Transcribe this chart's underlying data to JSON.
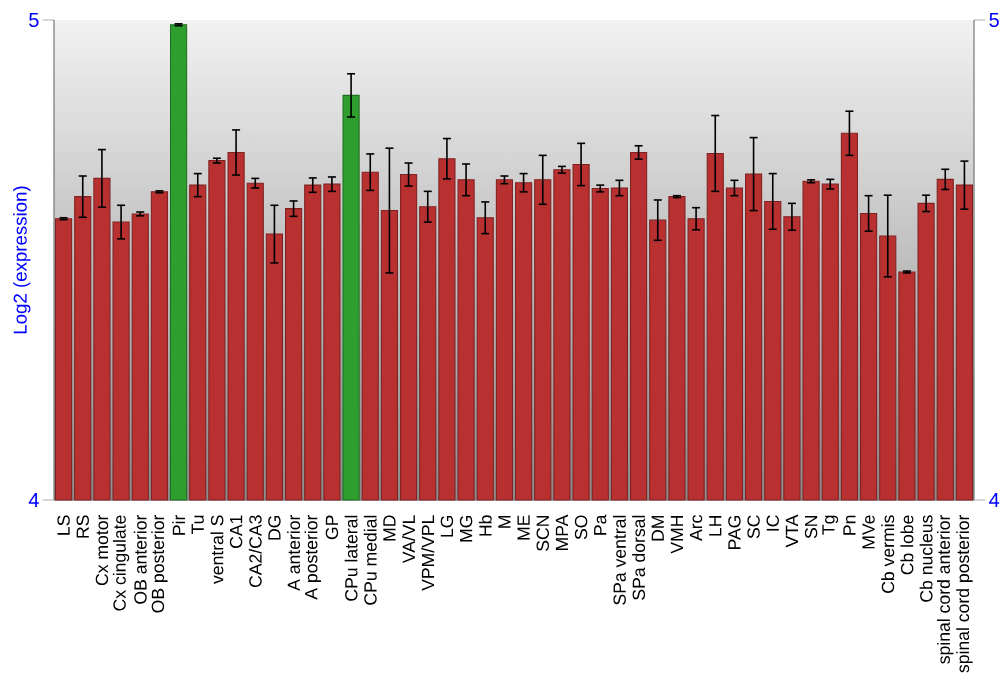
{
  "chart_data": {
    "type": "bar",
    "ylabel": "Log2 (expression)",
    "categories": [
      "LS",
      "RS",
      "Cx motor",
      "Cx cingulate",
      "OB anterior",
      "OB posterior",
      "Pir",
      "Tu",
      "ventral S",
      "CA1",
      "CA2/CA3",
      "DG",
      "A anterior",
      "A posterior",
      "GP",
      "CPu lateral",
      "CPu medial",
      "MD",
      "VA/VL",
      "VPM/VPL",
      "LG",
      "MG",
      "Hb",
      "M",
      "ME",
      "SCN",
      "MPA",
      "SO",
      "Pa",
      "SPa ventral",
      "SPa dorsal",
      "DM",
      "VMH",
      "Arc",
      "LH",
      "PAG",
      "SC",
      "IC",
      "VTA",
      "SN",
      "Tg",
      "Pn",
      "MVe",
      "Cb vermis",
      "Cb lobe",
      "Cb nucleus",
      "spinal cord anterior",
      "spinal cord posterior"
    ],
    "values": [
      4.586,
      4.632,
      4.67,
      4.579,
      4.596,
      4.642,
      4.99,
      4.656,
      4.707,
      4.724,
      4.66,
      4.554,
      4.607,
      4.656,
      4.658,
      4.843,
      4.683,
      4.603,
      4.678,
      4.611,
      4.711,
      4.667,
      4.588,
      4.667,
      4.661,
      4.667,
      4.688,
      4.699,
      4.649,
      4.65,
      4.724,
      4.583,
      4.632,
      4.586,
      4.722,
      4.65,
      4.679,
      4.622,
      4.59,
      4.664,
      4.658,
      4.764,
      4.597,
      4.55,
      4.475,
      4.618,
      4.668,
      4.656
    ],
    "errors": [
      0.002,
      0.043,
      0.06,
      0.035,
      0.004,
      0.002,
      0.002,
      0.024,
      0.005,
      0.047,
      0.01,
      0.06,
      0.016,
      0.015,
      0.015,
      0.045,
      0.038,
      0.13,
      0.024,
      0.032,
      0.042,
      0.033,
      0.033,
      0.008,
      0.019,
      0.051,
      0.007,
      0.044,
      0.007,
      0.016,
      0.014,
      0.042,
      0.002,
      0.023,
      0.079,
      0.016,
      0.076,
      0.058,
      0.028,
      0.003,
      0.01,
      0.046,
      0.037,
      0.085,
      0.002,
      0.017,
      0.021,
      0.05
    ],
    "colors": [
      "#b83030",
      "#b83030",
      "#b83030",
      "#b83030",
      "#b83030",
      "#b83030",
      "#2e9e2e",
      "#b83030",
      "#b83030",
      "#b83030",
      "#b83030",
      "#b83030",
      "#b83030",
      "#b83030",
      "#b83030",
      "#2e9e2e",
      "#b83030",
      "#b83030",
      "#b83030",
      "#b83030",
      "#b83030",
      "#b83030",
      "#b83030",
      "#b83030",
      "#b83030",
      "#b83030",
      "#b83030",
      "#b83030",
      "#b83030",
      "#b83030",
      "#b83030",
      "#b83030",
      "#b83030",
      "#b83030",
      "#b83030",
      "#b83030",
      "#b83030",
      "#b83030",
      "#b83030",
      "#b83030",
      "#b83030",
      "#b83030",
      "#b83030",
      "#b83030",
      "#b83030",
      "#b83030",
      "#b83030",
      "#b83030"
    ],
    "ylim": [
      4,
      5
    ],
    "yticks": [
      4,
      5
    ],
    "y2lim": [
      4,
      5
    ],
    "y2ticks": [
      4,
      5
    ],
    "grid": false
  }
}
